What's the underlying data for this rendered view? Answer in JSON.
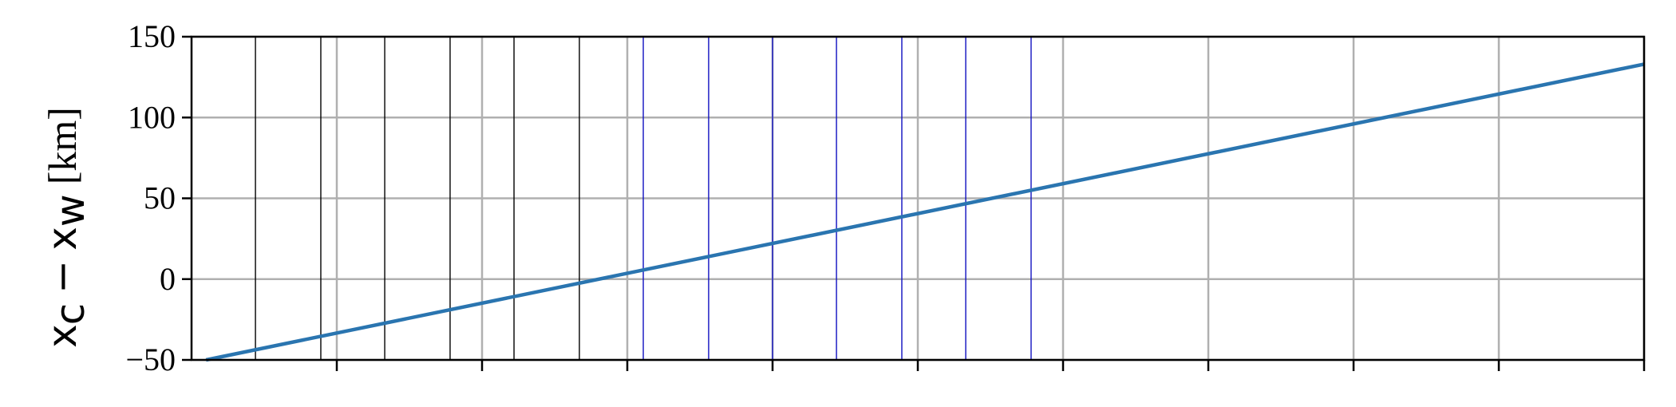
{
  "chart_data": {
    "type": "line",
    "title": "",
    "xlabel": "",
    "ylabel": {
      "prefix": "x",
      "sub1": "c",
      "minus": "−",
      "prefix2": "x",
      "sub2": "w",
      "unit": "[km]"
    },
    "xlim": [
      0,
      10
    ],
    "ylim": [
      -50,
      150
    ],
    "yticks": [
      -50,
      0,
      50,
      100,
      150
    ],
    "ytick_labels": [
      "−50",
      "0",
      "50",
      "100",
      "150"
    ],
    "xticks": [
      1,
      2,
      3,
      4,
      5,
      6,
      7,
      8,
      9,
      10
    ],
    "grid": true,
    "series": [
      {
        "x": [
          0.1,
          10
        ],
        "y": [
          -50,
          133
        ],
        "color": "#2a75b0"
      }
    ],
    "vlines_black": [
      0.44,
      0.89,
      1.33,
      1.78,
      2.22,
      2.67
    ],
    "vlines_blue": [
      3.11,
      3.56,
      4.0,
      4.44,
      4.89,
      5.33,
      5.78
    ],
    "colors": {
      "black_lines": "#000000",
      "blue_lines": "#1010c0",
      "grid": "#b0b0b0"
    }
  }
}
